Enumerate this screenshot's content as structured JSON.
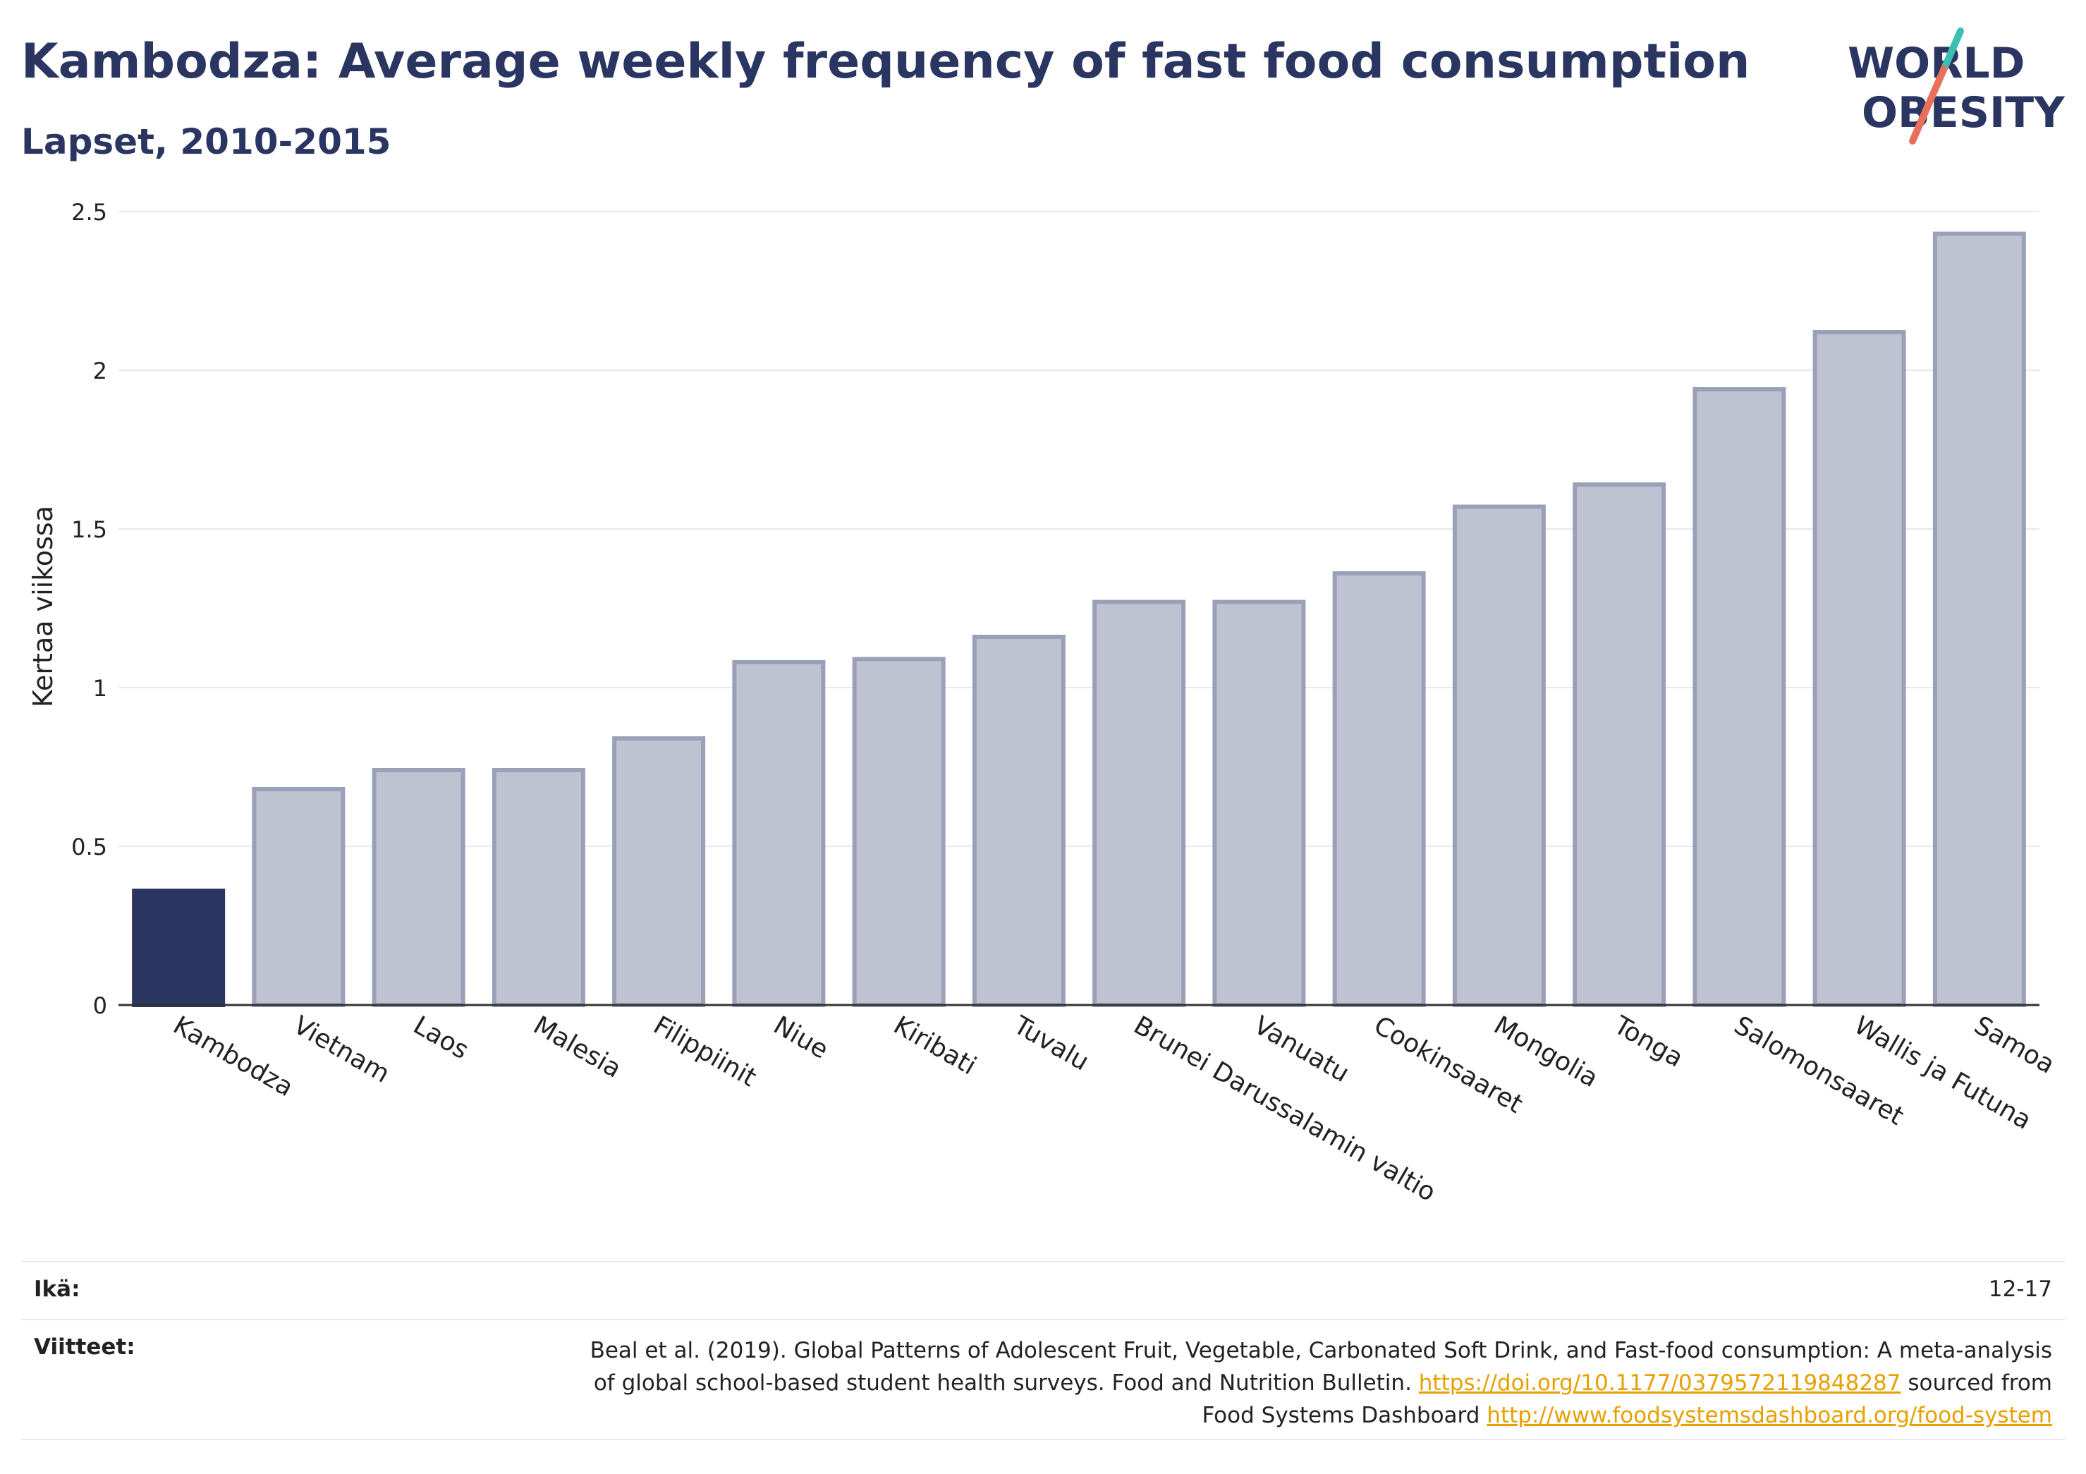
{
  "header": {
    "title": "Kambodza: Average weekly frequency of fast food consumption",
    "subtitle": "Lapset, 2010-2015"
  },
  "logo": {
    "line1": "WORLD",
    "line2": "OBESITY"
  },
  "colors": {
    "highlight": "#2a3561",
    "bar": "#bfc3d1",
    "bar_stroke": "#9aa0b8",
    "text": "#2a3561",
    "link": "#e8a000"
  },
  "chart_data": {
    "type": "bar",
    "categories": [
      "Kambodza",
      "Vietnam",
      "Laos",
      "Malesia",
      "Filippiinit",
      "Niue",
      "Kiribati",
      "Tuvalu",
      "Brunei Darussalamin valtio",
      "Vanuatu",
      "Cookinsaaret",
      "Mongolia",
      "Tonga",
      "Salomonsaaret",
      "Wallis ja Futuna",
      "Samoa"
    ],
    "values": [
      0.36,
      0.68,
      0.74,
      0.74,
      0.84,
      1.08,
      1.09,
      1.16,
      1.27,
      1.27,
      1.36,
      1.57,
      1.64,
      1.94,
      2.12,
      2.43
    ],
    "highlight": "Kambodza",
    "ylabel": "Kertaa viikossa",
    "ylim": [
      0,
      2.5
    ],
    "yticks": [
      0,
      0.5,
      1,
      1.5,
      2,
      2.5
    ],
    "ytick_labels": [
      "0",
      "0.5",
      "1",
      "1.5",
      "2",
      "2.5"
    ],
    "grid": true
  },
  "footer": {
    "age_label": "Ikä:",
    "age_value": "12-17",
    "refs_label": "Viitteet:",
    "refs_text1": "Beal et al. (2019). Global Patterns of Adolescent Fruit, Vegetable, Carbonated Soft Drink, and Fast-food consumption: A meta-analysis",
    "refs_text2": "of global school-based student health surveys. Food and Nutrition Bulletin.",
    "refs_link1": "https://doi.org/10.1177/0379572119848287",
    "refs_text3": "sourced from",
    "refs_text4": "Food Systems Dashboard",
    "refs_link2": "http://www.foodsystemsdashboard.org/food-system"
  }
}
